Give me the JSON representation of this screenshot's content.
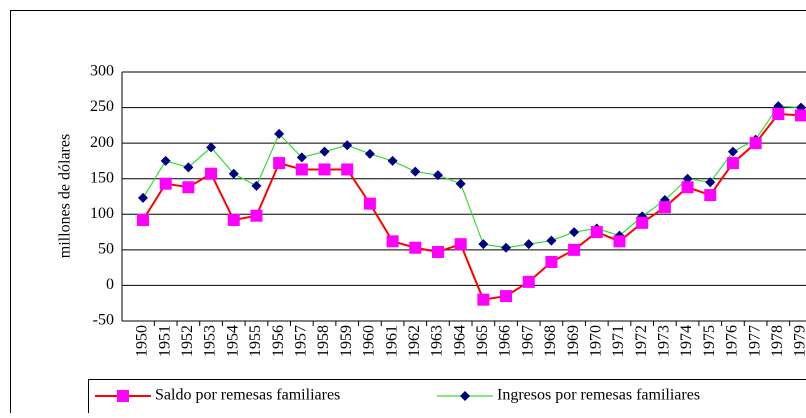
{
  "chart_data": {
    "type": "line",
    "y_label": "millones de dólares",
    "categories": [
      "1950",
      "1951",
      "1952",
      "1953",
      "1954",
      "1955",
      "1956",
      "1957",
      "1958",
      "1959",
      "1960",
      "1961",
      "1962",
      "1963",
      "1964",
      "1965",
      "1966",
      "1967",
      "1968",
      "1969",
      "1970",
      "1971",
      "1972",
      "1973",
      "1974",
      "1975",
      "1976",
      "1977",
      "1978",
      "1979"
    ],
    "series": [
      {
        "name": "Saldo por remesas familiares",
        "color": "#ff0000",
        "marker_color": "#ff00ff",
        "marker": "square",
        "values": [
          92,
          143,
          138,
          157,
          92,
          98,
          172,
          163,
          163,
          163,
          115,
          62,
          53,
          47,
          58,
          -20,
          -15,
          5,
          33,
          50,
          75,
          62,
          88,
          110,
          138,
          127,
          172,
          200,
          241,
          239
        ]
      },
      {
        "name": "Ingresos por remesas familiares",
        "color": "#33dd33",
        "marker_color": "#000080",
        "marker": "diamond",
        "values": [
          123,
          175,
          166,
          194,
          157,
          140,
          213,
          180,
          188,
          197,
          185,
          175,
          160,
          155,
          143,
          58,
          53,
          58,
          63,
          75,
          80,
          70,
          97,
          120,
          150,
          145,
          188,
          205,
          252,
          250
        ]
      }
    ],
    "ylim": [
      -50,
      300
    ],
    "yticks": [
      -50,
      0,
      50,
      100,
      150,
      200,
      250,
      300
    ],
    "grid": true,
    "legend": "bottom"
  }
}
